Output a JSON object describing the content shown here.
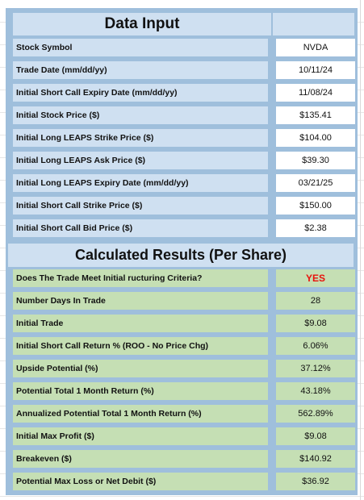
{
  "colors": {
    "panel_bg": "#9fbfdc",
    "input_label_bg": "#cfe0f1",
    "input_value_bg": "#ffffff",
    "result_bg": "#c5dfb4",
    "yes_text": "#e8130c"
  },
  "data_input": {
    "title": "Data Input",
    "rows": [
      {
        "label": "Stock Symbol",
        "value": "NVDA"
      },
      {
        "label": "Trade Date  (mm/dd/yy)",
        "value": "10/11/24"
      },
      {
        "label": "Initial Short Call Expiry Date  (mm/dd/yy)",
        "value": "11/08/24"
      },
      {
        "label": "Initial Stock Price ($)",
        "value": "$135.41"
      },
      {
        "label": "Initial Long LEAPS Strike Price ($)",
        "value": "$104.00"
      },
      {
        "label": "Initial Long LEAPS Ask Price ($)",
        "value": "$39.30"
      },
      {
        "label": "Initial Long LEAPS Expiry Date (mm/dd/yy)",
        "value": "03/21/25"
      },
      {
        "label": "Initial Short Call Strike Price ($)",
        "value": "$150.00"
      },
      {
        "label": "Initial Short Call Bid Price ($)",
        "value": "$2.38"
      }
    ]
  },
  "calculated_results": {
    "title": "Calculated Results (Per Share)",
    "rows": [
      {
        "label": "Does The Trade Meet Initial ructuring Criteria?",
        "value": "YES"
      },
      {
        "label": "Number Days In Trade",
        "value": "28"
      },
      {
        "label": "Initial Trade",
        "value": "$9.08"
      },
      {
        "label": "Initial Short Call Return % (ROO - No Price Chg)",
        "value": "6.06%"
      },
      {
        "label": "Upside Potential (%)",
        "value": "37.12%"
      },
      {
        "label": "Potential Total 1 Month Return (%)",
        "value": "43.18%"
      },
      {
        "label": "Annualized Potential Total 1 Month Return (%)",
        "value": "562.89%"
      },
      {
        "label": "Initial Max Profit ($)",
        "value": "$9.08"
      },
      {
        "label": "Breakeven ($)",
        "value": "$140.92"
      },
      {
        "label": "Potential Max Loss or Net Debit ($)",
        "value": "$36.92"
      }
    ]
  }
}
